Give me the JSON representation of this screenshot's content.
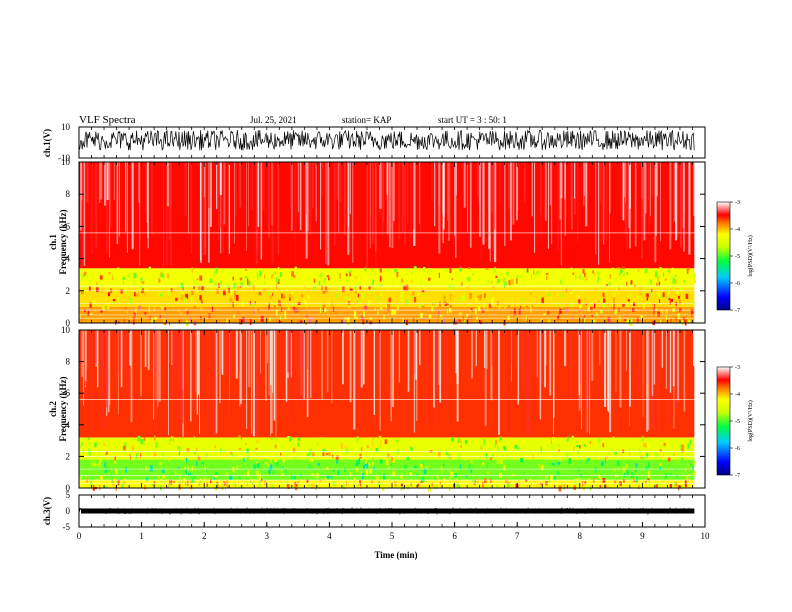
{
  "header": {
    "title": "VLF Spectra",
    "date": "Jul. 25, 2021",
    "station": "station= KAP",
    "start": "start  UT =   3 : 50: 1"
  },
  "chart_data": [
    {
      "type": "line",
      "panel": "ch1-waveform",
      "ylabel": "ch.1(V)",
      "ylim": [
        -10,
        10
      ],
      "yticks": [
        "10",
        "-10"
      ],
      "description_values": "dense oscillating voltage trace, roughly -5 to +8 V",
      "xlim": [
        0,
        10
      ]
    },
    {
      "type": "heatmap",
      "panel": "ch1-spectrogram",
      "ylabel": "ch.1\nFrequency (kHz)",
      "ylim": [
        0,
        10
      ],
      "yticks": [
        "10",
        "8",
        "6",
        "4",
        "2",
        "0"
      ],
      "xlim": [
        0,
        10
      ],
      "data_extent_min": 9.83,
      "bands": [
        {
          "from_khz": 0.0,
          "to_khz": 1.0,
          "level": -3.9
        },
        {
          "from_khz": 1.0,
          "to_khz": 2.2,
          "level": -4.1
        },
        {
          "from_khz": 2.2,
          "to_khz": 3.4,
          "level": -4.3
        },
        {
          "from_khz": 3.4,
          "to_khz": 10.0,
          "level": -3.5
        }
      ],
      "colorbar": {
        "label": "log(PSD)(V²/Hz)",
        "range": [
          -7,
          -3
        ],
        "ticks": [
          "-3",
          "-4",
          "-5",
          "-6",
          "-7"
        ]
      }
    },
    {
      "type": "heatmap",
      "panel": "ch2-spectrogram",
      "ylabel": "ch.2\nFrequency (kHz)",
      "ylim": [
        0,
        10
      ],
      "yticks": [
        "10",
        "8",
        "6",
        "4",
        "2",
        "0"
      ],
      "xlim": [
        0,
        10
      ],
      "data_extent_min": 9.83,
      "bands": [
        {
          "from_khz": 0.0,
          "to_khz": 0.5,
          "level": -4.2
        },
        {
          "from_khz": 0.5,
          "to_khz": 1.8,
          "level": -4.9
        },
        {
          "from_khz": 1.8,
          "to_khz": 3.2,
          "level": -4.4
        },
        {
          "from_khz": 3.2,
          "to_khz": 10.0,
          "level": -3.6
        }
      ],
      "colorbar": {
        "label": "log(PSD)(V²/Hz)",
        "range": [
          -7,
          -3
        ],
        "ticks": [
          "-3",
          "-4",
          "-5",
          "-6",
          "-7"
        ]
      }
    },
    {
      "type": "line",
      "panel": "ch3-waveform",
      "ylabel": "ch.3(V)",
      "ylim": [
        -5,
        5
      ],
      "yticks": [
        "5",
        "0",
        "-5"
      ],
      "level_v": 0.0,
      "xlim": [
        0,
        10
      ]
    }
  ],
  "xaxis": {
    "label": "Time (min)",
    "ticks": [
      "0",
      "1",
      "2",
      "3",
      "4",
      "5",
      "6",
      "7",
      "8",
      "9",
      "10"
    ]
  }
}
